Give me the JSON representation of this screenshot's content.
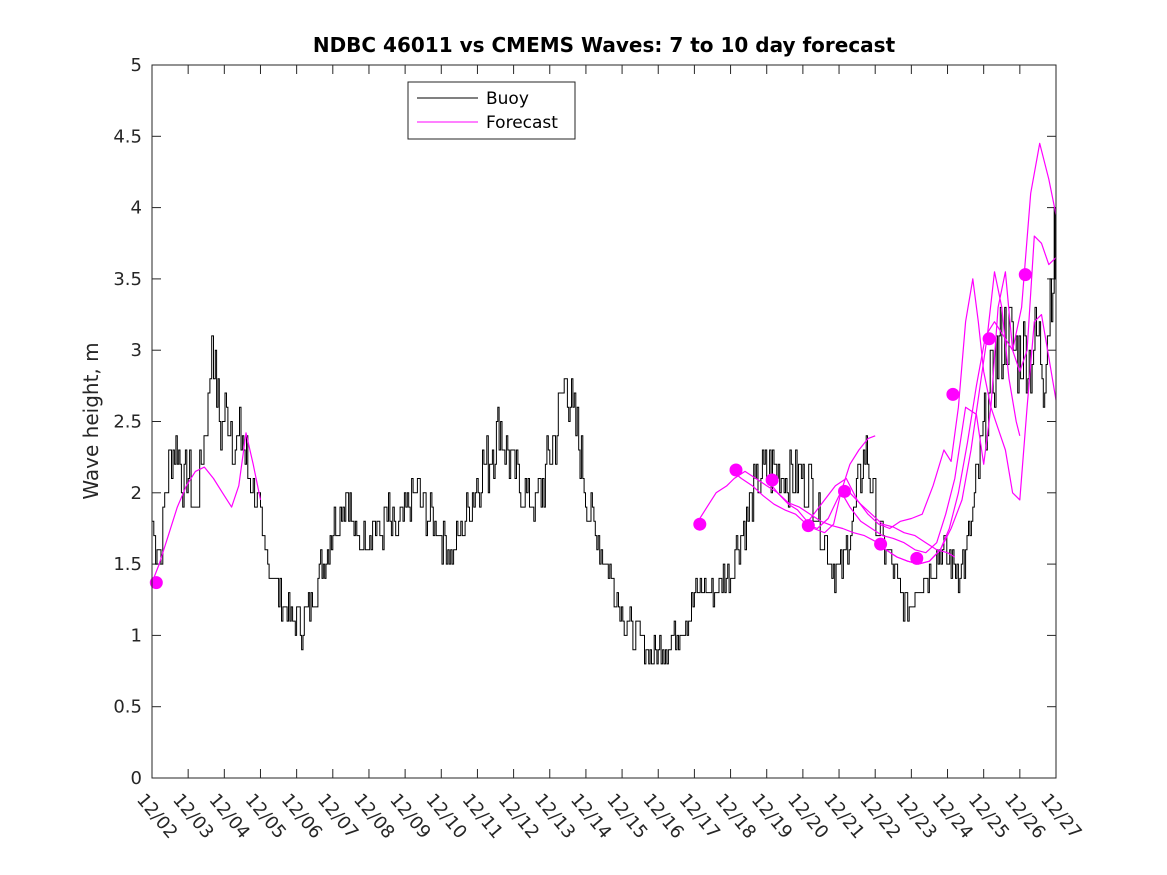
{
  "chart_data": {
    "type": "line",
    "title": "NDBC 46011 vs CMEMS Waves: 7 to 10 day forecast",
    "xlabel": "",
    "ylabel": "Wave height, m",
    "ylim": [
      0,
      5
    ],
    "yticks": [
      "0",
      "0.5",
      "1",
      "1.5",
      "2",
      "2.5",
      "3",
      "3.5",
      "4",
      "4.5",
      "5"
    ],
    "xlim": [
      0,
      25
    ],
    "xticks": [
      "12/02",
      "12/03",
      "12/04",
      "12/05",
      "12/06",
      "12/07",
      "12/08",
      "12/09",
      "12/10",
      "12/11",
      "12/12",
      "12/13",
      "12/14",
      "12/15",
      "12/16",
      "12/17",
      "12/18",
      "12/19",
      "12/20",
      "12/21",
      "12/22",
      "12/23",
      "12/24",
      "12/25",
      "12/26",
      "12/27"
    ],
    "legend": {
      "position": "top-left",
      "entries": [
        "Buoy",
        "Forecast"
      ]
    },
    "colors": {
      "buoy": "#000000",
      "forecast": "#ff00ff",
      "marker": "#ff00ff"
    },
    "buoy_anchors": [
      [
        0.0,
        1.8
      ],
      [
        0.1,
        1.65
      ],
      [
        0.25,
        1.6
      ],
      [
        0.35,
        1.95
      ],
      [
        0.5,
        2.2
      ],
      [
        0.7,
        2.35
      ],
      [
        0.85,
        2.05
      ],
      [
        1.0,
        2.15
      ],
      [
        1.2,
        1.85
      ],
      [
        1.4,
        2.3
      ],
      [
        1.55,
        2.6
      ],
      [
        1.65,
        3.2
      ],
      [
        1.75,
        2.8
      ],
      [
        1.9,
        2.45
      ],
      [
        2.1,
        2.6
      ],
      [
        2.3,
        2.3
      ],
      [
        2.5,
        2.4
      ],
      [
        2.65,
        2.15
      ],
      [
        2.8,
        2.05
      ],
      [
        2.95,
        1.85
      ],
      [
        3.05,
        1.6
      ],
      [
        3.2,
        1.5
      ],
      [
        3.35,
        1.45
      ],
      [
        3.5,
        1.25
      ],
      [
        3.7,
        1.2
      ],
      [
        3.85,
        1.1
      ],
      [
        4.0,
        1.1
      ],
      [
        4.1,
        1.05
      ],
      [
        4.25,
        1.15
      ],
      [
        4.4,
        1.2
      ],
      [
        4.55,
        1.35
      ],
      [
        4.7,
        1.5
      ],
      [
        4.85,
        1.65
      ],
      [
        5.0,
        1.75
      ],
      [
        5.2,
        1.9
      ],
      [
        5.4,
        2.0
      ],
      [
        5.55,
        1.75
      ],
      [
        5.7,
        1.65
      ],
      [
        5.9,
        1.7
      ],
      [
        6.1,
        1.8
      ],
      [
        6.3,
        1.7
      ],
      [
        6.5,
        1.85
      ],
      [
        6.7,
        1.7
      ],
      [
        6.9,
        1.8
      ],
      [
        7.1,
        1.95
      ],
      [
        7.3,
        2.0
      ],
      [
        7.5,
        1.9
      ],
      [
        7.7,
        1.85
      ],
      [
        7.9,
        1.75
      ],
      [
        8.1,
        1.65
      ],
      [
        8.3,
        1.55
      ],
      [
        8.5,
        1.7
      ],
      [
        8.7,
        1.85
      ],
      [
        8.9,
        2.0
      ],
      [
        9.1,
        2.15
      ],
      [
        9.3,
        2.2
      ],
      [
        9.45,
        2.35
      ],
      [
        9.6,
        2.5
      ],
      [
        9.8,
        2.3
      ],
      [
        10.0,
        2.15
      ],
      [
        10.2,
        2.05
      ],
      [
        10.4,
        1.95
      ],
      [
        10.6,
        1.9
      ],
      [
        10.8,
        2.05
      ],
      [
        11.0,
        2.25
      ],
      [
        11.2,
        2.45
      ],
      [
        11.35,
        2.7
      ],
      [
        11.45,
        2.85
      ],
      [
        11.6,
        2.55
      ],
      [
        11.8,
        2.35
      ],
      [
        11.95,
        2.05
      ],
      [
        12.1,
        1.85
      ],
      [
        12.3,
        1.7
      ],
      [
        12.5,
        1.55
      ],
      [
        12.7,
        1.4
      ],
      [
        12.9,
        1.25
      ],
      [
        13.1,
        1.1
      ],
      [
        13.3,
        1.0
      ],
      [
        13.5,
        0.95
      ],
      [
        13.7,
        0.9
      ],
      [
        13.85,
        0.85
      ],
      [
        14.0,
        0.9
      ],
      [
        14.2,
        0.95
      ],
      [
        14.4,
        0.95
      ],
      [
        14.6,
        1.05
      ],
      [
        14.8,
        1.15
      ],
      [
        15.0,
        1.25
      ],
      [
        15.2,
        1.35
      ],
      [
        15.4,
        1.3
      ],
      [
        15.6,
        1.35
      ],
      [
        15.8,
        1.4
      ],
      [
        16.0,
        1.45
      ],
      [
        16.2,
        1.65
      ],
      [
        16.4,
        1.8
      ],
      [
        16.6,
        1.95
      ],
      [
        16.8,
        2.1
      ],
      [
        17.0,
        2.15
      ],
      [
        17.2,
        2.2
      ],
      [
        17.4,
        2.15
      ],
      [
        17.6,
        2.1
      ],
      [
        17.8,
        2.15
      ],
      [
        18.0,
        2.1
      ],
      [
        18.2,
        2.05
      ],
      [
        18.4,
        1.85
      ],
      [
        18.6,
        1.65
      ],
      [
        18.8,
        1.5
      ],
      [
        19.0,
        1.4
      ],
      [
        19.2,
        1.6
      ],
      [
        19.4,
        1.85
      ],
      [
        19.6,
        2.15
      ],
      [
        19.75,
        2.3
      ],
      [
        19.9,
        2.05
      ],
      [
        20.1,
        1.75
      ],
      [
        20.3,
        1.6
      ],
      [
        20.5,
        1.45
      ],
      [
        20.7,
        1.3
      ],
      [
        20.9,
        1.2
      ],
      [
        21.1,
        1.3
      ],
      [
        21.3,
        1.4
      ],
      [
        21.5,
        1.45
      ],
      [
        21.7,
        1.55
      ],
      [
        21.9,
        1.6
      ],
      [
        22.1,
        1.5
      ],
      [
        22.3,
        1.45
      ],
      [
        22.5,
        1.55
      ],
      [
        22.7,
        1.85
      ],
      [
        22.9,
        2.25
      ],
      [
        23.1,
        2.6
      ],
      [
        23.3,
        2.9
      ],
      [
        23.5,
        3.05
      ],
      [
        23.7,
        3.1
      ],
      [
        23.9,
        2.95
      ],
      [
        24.1,
        3.0
      ],
      [
        24.3,
        2.95
      ],
      [
        24.5,
        3.1
      ],
      [
        24.65,
        2.85
      ],
      [
        24.8,
        3.3
      ],
      [
        24.95,
        3.7
      ],
      [
        25.0,
        3.6
      ]
    ],
    "forecast_series": [
      {
        "name": "forecast-1",
        "x": [
          0.0,
          0.2,
          0.45,
          0.7,
          0.95,
          1.2,
          1.45,
          1.7,
          1.95,
          2.2,
          2.4,
          2.6,
          2.8,
          3.0
        ],
        "y": [
          1.37,
          1.5,
          1.7,
          1.9,
          2.05,
          2.15,
          2.18,
          2.1,
          2.0,
          1.9,
          2.05,
          2.42,
          2.2,
          1.95
        ]
      },
      {
        "name": "forecast-2",
        "x": [
          15.05,
          15.3,
          15.6,
          15.9,
          16.1,
          16.4,
          16.7,
          17.0,
          17.3,
          17.6,
          17.85,
          18.05,
          18.3,
          18.6,
          18.85,
          19.05,
          19.3,
          19.55,
          19.8,
          20.0
        ],
        "y": [
          1.78,
          1.88,
          2.0,
          2.05,
          2.1,
          2.15,
          2.1,
          2.05,
          2.0,
          1.92,
          1.88,
          1.82,
          1.75,
          1.72,
          1.78,
          2.0,
          2.2,
          2.3,
          2.38,
          2.4
        ]
      },
      {
        "name": "forecast-3",
        "x": [
          16.05,
          16.3,
          16.6,
          16.9,
          17.2,
          17.5,
          17.8,
          18.1,
          18.4,
          18.7,
          19.0,
          19.3,
          19.6,
          19.9,
          20.2,
          20.5,
          20.8,
          21.1,
          21.4,
          21.7,
          22.0,
          22.2
        ],
        "y": [
          2.15,
          2.1,
          2.05,
          1.98,
          1.92,
          1.88,
          1.85,
          1.78,
          1.75,
          1.82,
          1.98,
          2.0,
          1.92,
          1.85,
          1.78,
          1.76,
          1.72,
          1.7,
          1.65,
          1.6,
          1.58,
          1.55
        ]
      },
      {
        "name": "forecast-4",
        "x": [
          17.05,
          17.3,
          17.6,
          17.9,
          18.2,
          18.5,
          18.8,
          19.1,
          19.4,
          19.7,
          20.0,
          20.3,
          20.6,
          20.9,
          21.2,
          21.5,
          21.8,
          22.1,
          22.4,
          22.65,
          22.9,
          23.1,
          23.3,
          23.5,
          23.7,
          23.9,
          24.0
        ],
        "y": [
          2.08,
          2.0,
          1.93,
          1.9,
          1.85,
          1.8,
          1.77,
          1.75,
          1.72,
          1.7,
          1.66,
          1.6,
          1.55,
          1.52,
          1.5,
          1.52,
          1.6,
          1.75,
          1.95,
          2.3,
          2.75,
          3.1,
          3.55,
          3.3,
          2.8,
          2.5,
          2.4
        ]
      },
      {
        "name": "forecast-5",
        "x": [
          18.05,
          18.3,
          18.6,
          18.9,
          19.2,
          19.5,
          19.8,
          20.1,
          20.4,
          20.7,
          21.0,
          21.3,
          21.6,
          21.9,
          22.1,
          22.3,
          22.5,
          22.7,
          22.85,
          23.0,
          23.2,
          23.4,
          23.6,
          23.8,
          24.0,
          24.2,
          24.4,
          24.6,
          24.8,
          25.0
        ],
        "y": [
          1.77,
          1.85,
          1.95,
          2.05,
          2.1,
          1.95,
          1.85,
          1.78,
          1.75,
          1.8,
          1.82,
          1.85,
          2.05,
          2.3,
          2.22,
          2.6,
          3.2,
          3.5,
          3.2,
          2.85,
          2.6,
          2.45,
          2.3,
          2.0,
          1.95,
          2.6,
          3.2,
          3.25,
          2.95,
          2.65
        ]
      },
      {
        "name": "forecast-6",
        "x": [
          19.05,
          19.3,
          19.6,
          19.9,
          20.2,
          20.5,
          20.8,
          21.1,
          21.4,
          21.7,
          21.95,
          22.2,
          22.5,
          22.8,
          23.0,
          23.2,
          23.4,
          23.6,
          23.8,
          24.0,
          24.2,
          24.4,
          24.6,
          24.8,
          25.0
        ],
        "y": [
          2.01,
          1.9,
          1.8,
          1.75,
          1.7,
          1.68,
          1.65,
          1.6,
          1.58,
          1.65,
          1.85,
          2.1,
          2.6,
          2.55,
          2.2,
          2.6,
          3.3,
          3.55,
          3.0,
          2.85,
          3.0,
          3.8,
          3.75,
          3.6,
          3.65
        ]
      },
      {
        "name": "forecast-7",
        "x": [
          20.05,
          20.3,
          20.6,
          20.9,
          21.2,
          21.5,
          21.8,
          22.05,
          22.3,
          22.55,
          22.8,
          23.05,
          23.3,
          23.55,
          23.8,
          24.05,
          24.3,
          24.55,
          24.8,
          25.0
        ],
        "y": [
          1.64,
          1.6,
          1.55,
          1.52,
          1.5,
          1.52,
          1.6,
          1.75,
          2.0,
          2.35,
          2.75,
          3.1,
          3.2,
          3.1,
          3.0,
          3.3,
          4.1,
          4.45,
          4.2,
          3.95
        ]
      }
    ],
    "markers": {
      "x": [
        0.12,
        15.15,
        16.15,
        17.15,
        18.15,
        19.15,
        20.15,
        21.15,
        22.15,
        23.15,
        24.15
      ],
      "y": [
        1.37,
        1.78,
        2.16,
        2.09,
        1.77,
        2.01,
        1.64,
        1.54,
        2.69,
        3.08,
        3.53
      ]
    }
  }
}
